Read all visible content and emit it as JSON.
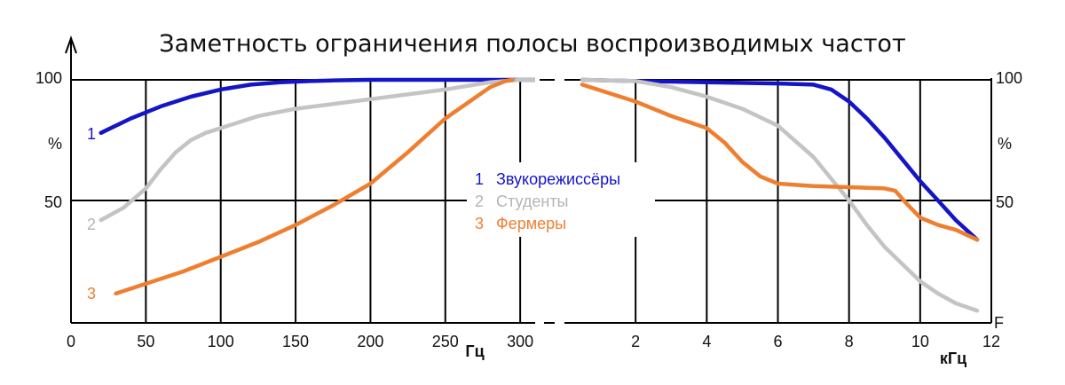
{
  "chart_data": {
    "type": "line",
    "title": "Заметность ограничения полосы воспроизводимых частот",
    "y_label": "%",
    "y_ticks_left": [
      "100",
      "50"
    ],
    "y_ticks_right": [
      "100",
      "50"
    ],
    "y_axis_letter": "F",
    "ylim": [
      0,
      100
    ],
    "grid": true,
    "legend_position": "center",
    "panels": [
      {
        "id": "low",
        "unit": "Гц",
        "xlim": [
          0,
          310
        ],
        "x_ticks": [
          "0",
          "50",
          "100",
          "150",
          "200",
          "250",
          "300"
        ],
        "x_tick_values": [
          0,
          50,
          100,
          150,
          200,
          250,
          300
        ],
        "series": [
          {
            "key": "1",
            "color": "#1515c8",
            "x": [
              20,
              40,
              60,
              80,
              100,
              120,
              140,
              160,
              180,
              200,
              220,
              240,
              260,
              280,
              300,
              310
            ],
            "y": [
              78,
              84,
              89,
              93,
              96,
              98,
              99,
              99.5,
              99.8,
              100,
              100,
              100,
              100,
              100,
              100,
              100
            ]
          },
          {
            "key": "2",
            "color": "#c4c4c4",
            "x": [
              20,
              35,
              50,
              60,
              70,
              80,
              90,
              100,
              125,
              150,
              200,
              250,
              280,
              300,
              310
            ],
            "y": [
              42,
              47,
              55,
              63,
              70,
              75,
              78,
              80,
              85,
              88,
              92,
              96,
              99,
              100,
              100
            ]
          },
          {
            "key": "3",
            "color": "#ef7f30",
            "x": [
              30,
              75,
              100,
              125,
              150,
              175,
              200,
              225,
              250,
              280,
              290,
              295
            ],
            "y": [
              12,
              21,
              27,
              33,
              40,
              48,
              57,
              70,
              84,
              97,
              99.5,
              100
            ]
          }
        ]
      },
      {
        "id": "high",
        "unit": "кГц",
        "xlim": [
          0,
          12
        ],
        "x_ticks": [
          "2",
          "4",
          "6",
          "8",
          "10",
          "12"
        ],
        "x_tick_values": [
          2,
          4,
          6,
          8,
          10,
          12
        ],
        "series": [
          {
            "key": "1",
            "color": "#1515c8",
            "x": [
              0.5,
              2,
              4,
              6,
              7,
              7.5,
              8,
              8.5,
              9,
              9.5,
              10,
              10.5,
              11,
              11.6
            ],
            "y": [
              100,
              99.5,
              99,
              98.5,
              98,
              96,
              91,
              84,
              76,
              67,
              58,
              50,
              42,
              34
            ]
          },
          {
            "key": "2",
            "color": "#c4c4c4",
            "x": [
              0.5,
              2,
              3,
              4,
              5,
              6,
              7,
              8,
              8.5,
              9,
              9.5,
              10,
              10.5,
              11,
              11.6
            ],
            "y": [
              100,
              99.5,
              97,
              93,
              88,
              81,
              68,
              50,
              40,
              31,
              24,
              17,
              12,
              8,
              5
            ]
          },
          {
            "key": "3",
            "color": "#ef7f30",
            "x": [
              0.5,
              2,
              3,
              4,
              4.5,
              5,
              5.5,
              6,
              7,
              8,
              9,
              9.3,
              9.6,
              10,
              10.5,
              11,
              11.6
            ],
            "y": [
              98,
              91,
              85,
              80,
              74,
              66,
              60,
              57,
              56,
              55.5,
              55,
              54,
              49,
              43,
              40,
              38,
              34
            ]
          }
        ]
      }
    ],
    "legend": [
      {
        "key": "1",
        "label": "Звукорежиссёры",
        "color": "#1515c8"
      },
      {
        "key": "2",
        "label": "Студенты",
        "color": "#c4c4c4"
      },
      {
        "key": "3",
        "label": "Фермеры",
        "color": "#ef7f30"
      }
    ]
  }
}
